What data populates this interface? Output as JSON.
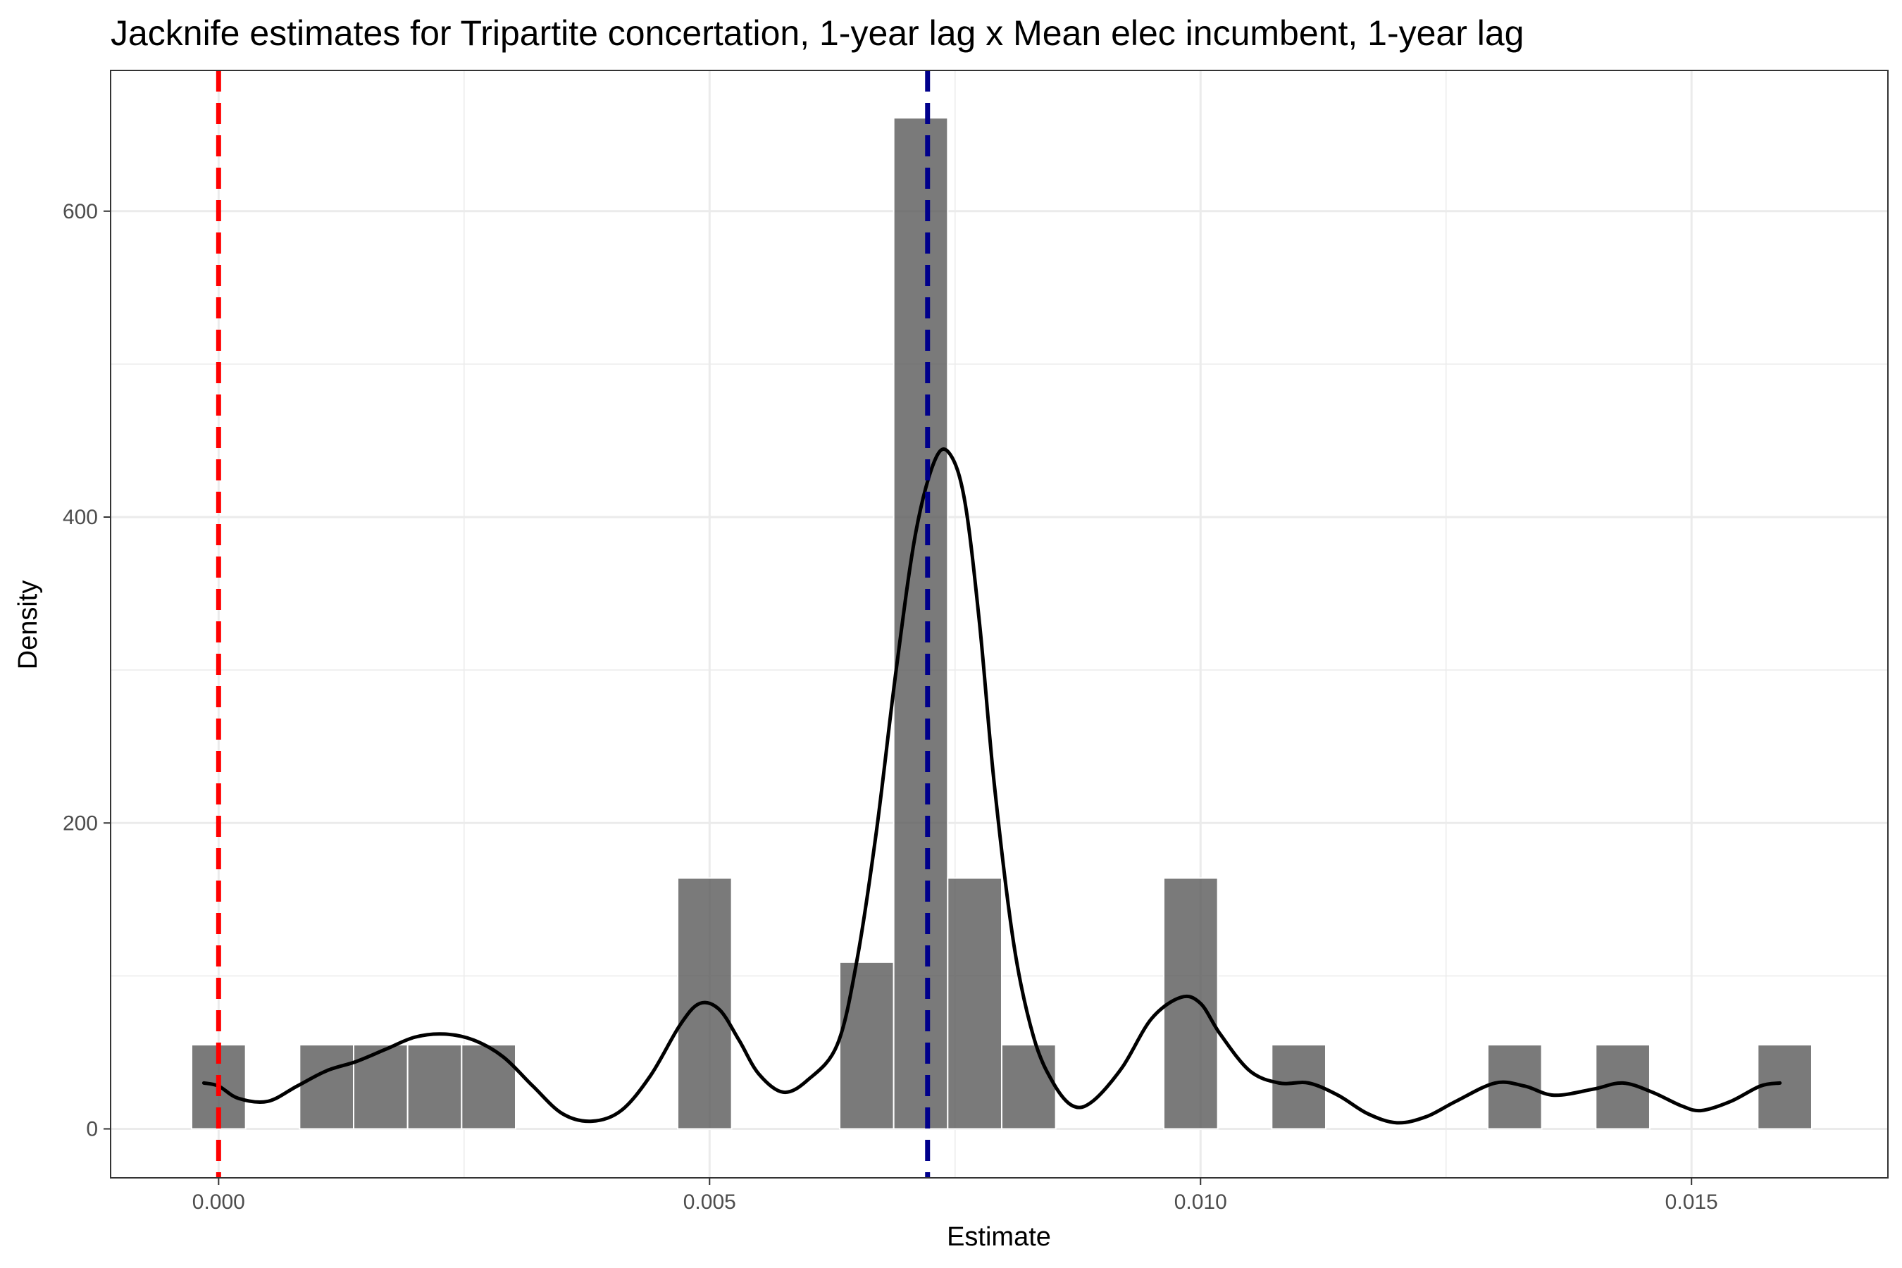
{
  "chart_data": {
    "type": "bar",
    "title": "Jacknife estimates for Tripartite concertation, 1-year lag x Mean elec incumbent, 1-year lag",
    "xlabel": "Estimate",
    "ylabel": "Density",
    "xlim": [
      -0.0011,
      0.017
    ],
    "ylim": [
      -32,
      692
    ],
    "x_ticks": [
      0.0,
      0.005,
      0.01,
      0.015
    ],
    "x_tick_labels": [
      "0.000",
      "0.005",
      "0.010",
      "0.015"
    ],
    "y_ticks": [
      0,
      200,
      400,
      600
    ],
    "y_tick_labels": [
      "0",
      "200",
      "400",
      "600"
    ],
    "grid": true,
    "bin_width": 0.00055,
    "bars": [
      {
        "x": 0.0,
        "density": 55
      },
      {
        "x": 0.0011,
        "density": 55
      },
      {
        "x": 0.00165,
        "density": 55
      },
      {
        "x": 0.0022,
        "density": 55
      },
      {
        "x": 0.00275,
        "density": 55
      },
      {
        "x": 0.00495,
        "density": 164
      },
      {
        "x": 0.0066,
        "density": 109
      },
      {
        "x": 0.00715,
        "density": 661
      },
      {
        "x": 0.0077,
        "density": 164
      },
      {
        "x": 0.00825,
        "density": 55
      },
      {
        "x": 0.0099,
        "density": 164
      },
      {
        "x": 0.011,
        "density": 55
      },
      {
        "x": 0.0132,
        "density": 55
      },
      {
        "x": 0.0143,
        "density": 55
      },
      {
        "x": 0.01595,
        "density": 55
      }
    ],
    "density_curve": [
      [
        -0.00015,
        30
      ],
      [
        0.0,
        28
      ],
      [
        0.0002,
        20
      ],
      [
        0.0005,
        18
      ],
      [
        0.0008,
        28
      ],
      [
        0.0011,
        38
      ],
      [
        0.0014,
        44
      ],
      [
        0.0017,
        52
      ],
      [
        0.002,
        60
      ],
      [
        0.0023,
        62
      ],
      [
        0.0026,
        58
      ],
      [
        0.0029,
        47
      ],
      [
        0.0032,
        28
      ],
      [
        0.0035,
        10
      ],
      [
        0.0038,
        5
      ],
      [
        0.0041,
        12
      ],
      [
        0.0044,
        35
      ],
      [
        0.0047,
        68
      ],
      [
        0.0049,
        82
      ],
      [
        0.0051,
        78
      ],
      [
        0.0053,
        58
      ],
      [
        0.0055,
        36
      ],
      [
        0.00575,
        24
      ],
      [
        0.006,
        32
      ],
      [
        0.0063,
        55
      ],
      [
        0.0065,
        110
      ],
      [
        0.0067,
        195
      ],
      [
        0.0069,
        300
      ],
      [
        0.0071,
        390
      ],
      [
        0.0073,
        438
      ],
      [
        0.00745,
        441
      ],
      [
        0.0076,
        410
      ],
      [
        0.00775,
        330
      ],
      [
        0.0079,
        225
      ],
      [
        0.0081,
        120
      ],
      [
        0.0083,
        60
      ],
      [
        0.0085,
        30
      ],
      [
        0.0087,
        15
      ],
      [
        0.0089,
        18
      ],
      [
        0.0092,
        40
      ],
      [
        0.0095,
        72
      ],
      [
        0.0098,
        86
      ],
      [
        0.01,
        82
      ],
      [
        0.0102,
        62
      ],
      [
        0.0105,
        38
      ],
      [
        0.0108,
        30
      ],
      [
        0.0111,
        30
      ],
      [
        0.0114,
        22
      ],
      [
        0.0117,
        10
      ],
      [
        0.012,
        4
      ],
      [
        0.0123,
        8
      ],
      [
        0.0126,
        18
      ],
      [
        0.013,
        30
      ],
      [
        0.0133,
        28
      ],
      [
        0.0136,
        22
      ],
      [
        0.014,
        26
      ],
      [
        0.0143,
        30
      ],
      [
        0.0146,
        24
      ],
      [
        0.0149,
        15
      ],
      [
        0.0151,
        12
      ],
      [
        0.0154,
        18
      ],
      [
        0.0157,
        28
      ],
      [
        0.0159,
        30
      ]
    ],
    "reference_lines": [
      {
        "x": 0.0,
        "color": "#ff0000",
        "style": "dashed"
      },
      {
        "x": 0.00722,
        "color": "#00008b",
        "style": "dashed"
      }
    ],
    "colors": {
      "bar_fill": "#595959",
      "bar_outline": "#ffffff",
      "curve": "#000000",
      "grid": "#ebebeb",
      "panel_border": "#333333",
      "tick_text": "#4d4d4d"
    }
  }
}
